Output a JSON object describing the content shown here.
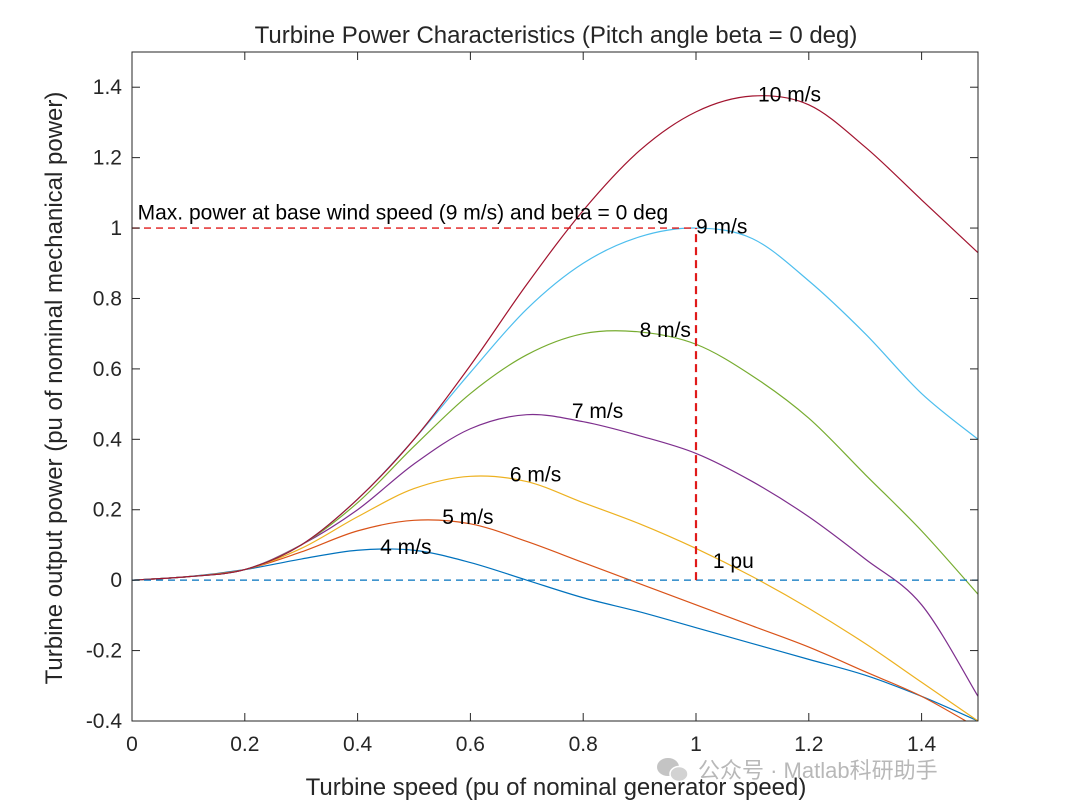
{
  "chart_data": {
    "type": "line",
    "title": "Turbine Power Characteristics (Pitch angle beta = 0 deg)",
    "xlabel": "Turbine speed (pu of nominal generator speed)",
    "ylabel": "Turbine output power (pu of nominal mechanical power)",
    "xlim": [
      0,
      1.5
    ],
    "ylim": [
      -0.4,
      1.5
    ],
    "xticks": [
      0,
      0.2,
      0.4,
      0.6,
      0.8,
      1,
      1.2,
      1.4
    ],
    "xtick_labels": [
      "0",
      "0.2",
      "0.4",
      "0.6",
      "0.8",
      "1",
      "1.2",
      "1.4"
    ],
    "yticks": [
      -0.4,
      -0.2,
      0,
      0.2,
      0.4,
      0.6,
      0.8,
      1,
      1.2,
      1.4
    ],
    "ytick_labels": [
      "-0.4",
      "-0.2",
      "0",
      "0.2",
      "0.4",
      "0.6",
      "0.8",
      "1",
      "1.2",
      "1.4"
    ],
    "grid": false,
    "x": [
      0,
      0.1,
      0.2,
      0.3,
      0.4,
      0.5,
      0.6,
      0.7,
      0.8,
      0.9,
      1.0,
      1.1,
      1.2,
      1.3,
      1.4,
      1.5
    ],
    "series": [
      {
        "color": "#0072BD",
        "values": [
          0,
          0.01,
          0.03,
          0.06,
          0.085,
          0.085,
          0.05,
          0.0,
          -0.05,
          -0.09,
          -0.135,
          -0.18,
          -0.225,
          -0.27,
          -0.33,
          -0.4
        ]
      },
      {
        "color": "#D95319",
        "values": [
          0,
          0.01,
          0.03,
          0.08,
          0.14,
          0.17,
          0.16,
          0.11,
          0.05,
          -0.01,
          -0.07,
          -0.13,
          -0.19,
          -0.26,
          -0.33,
          -0.42
        ]
      },
      {
        "color": "#EDB120",
        "values": [
          0,
          0.01,
          0.03,
          0.09,
          0.18,
          0.26,
          0.295,
          0.28,
          0.22,
          0.16,
          0.09,
          0.01,
          -0.08,
          -0.18,
          -0.29,
          -0.4
        ]
      },
      {
        "color": "#7E2F8E",
        "values": [
          0,
          0.01,
          0.03,
          0.1,
          0.2,
          0.33,
          0.43,
          0.47,
          0.45,
          0.41,
          0.36,
          0.28,
          0.18,
          0.06,
          -0.07,
          -0.33
        ]
      },
      {
        "color": "#77AC30",
        "values": [
          0,
          0.01,
          0.03,
          0.1,
          0.22,
          0.38,
          0.53,
          0.64,
          0.7,
          0.705,
          0.67,
          0.58,
          0.46,
          0.3,
          0.14,
          -0.04
        ]
      },
      {
        "color": "#4DBEEE",
        "values": [
          0,
          0.01,
          0.03,
          0.1,
          0.23,
          0.4,
          0.59,
          0.77,
          0.9,
          0.975,
          1.0,
          0.97,
          0.85,
          0.7,
          0.53,
          0.4
        ]
      },
      {
        "color": "#A2142F",
        "values": [
          0,
          0.01,
          0.03,
          0.1,
          0.23,
          0.4,
          0.61,
          0.84,
          1.05,
          1.22,
          1.33,
          1.375,
          1.35,
          1.23,
          1.08,
          0.93
        ]
      }
    ],
    "reference_lines": [
      {
        "type": "horizontal",
        "y": 0,
        "x_range": [
          0,
          1.5
        ],
        "style": "dashed",
        "color": "#0072BD"
      },
      {
        "type": "horizontal",
        "y": 1,
        "x_range": [
          0,
          1
        ],
        "style": "dashed",
        "color": "#E01A1A"
      },
      {
        "type": "vertical",
        "x": 1,
        "y_range": [
          0,
          1
        ],
        "style": "dashed",
        "color": "#E01A1A"
      }
    ],
    "annotations": [
      {
        "text": "4 m/s",
        "x": 0.44,
        "y": 0.075
      },
      {
        "text": "5 m/s",
        "x": 0.55,
        "y": 0.16
      },
      {
        "text": "6 m/s",
        "x": 0.67,
        "y": 0.28
      },
      {
        "text": "7 m/s",
        "x": 0.78,
        "y": 0.46
      },
      {
        "text": "8 m/s",
        "x": 0.9,
        "y": 0.69
      },
      {
        "text": "9 m/s",
        "x": 1.0,
        "y": 0.985
      },
      {
        "text": "10 m/s",
        "x": 1.11,
        "y": 1.36
      },
      {
        "text": "1 pu",
        "x": 1.03,
        "y": 0.035
      },
      {
        "text": "Max. power at base wind speed (9 m/s) and beta = 0 deg",
        "x": 0.01,
        "y": 1.025
      }
    ]
  },
  "watermark": "公众号 · Matlab科研助手"
}
